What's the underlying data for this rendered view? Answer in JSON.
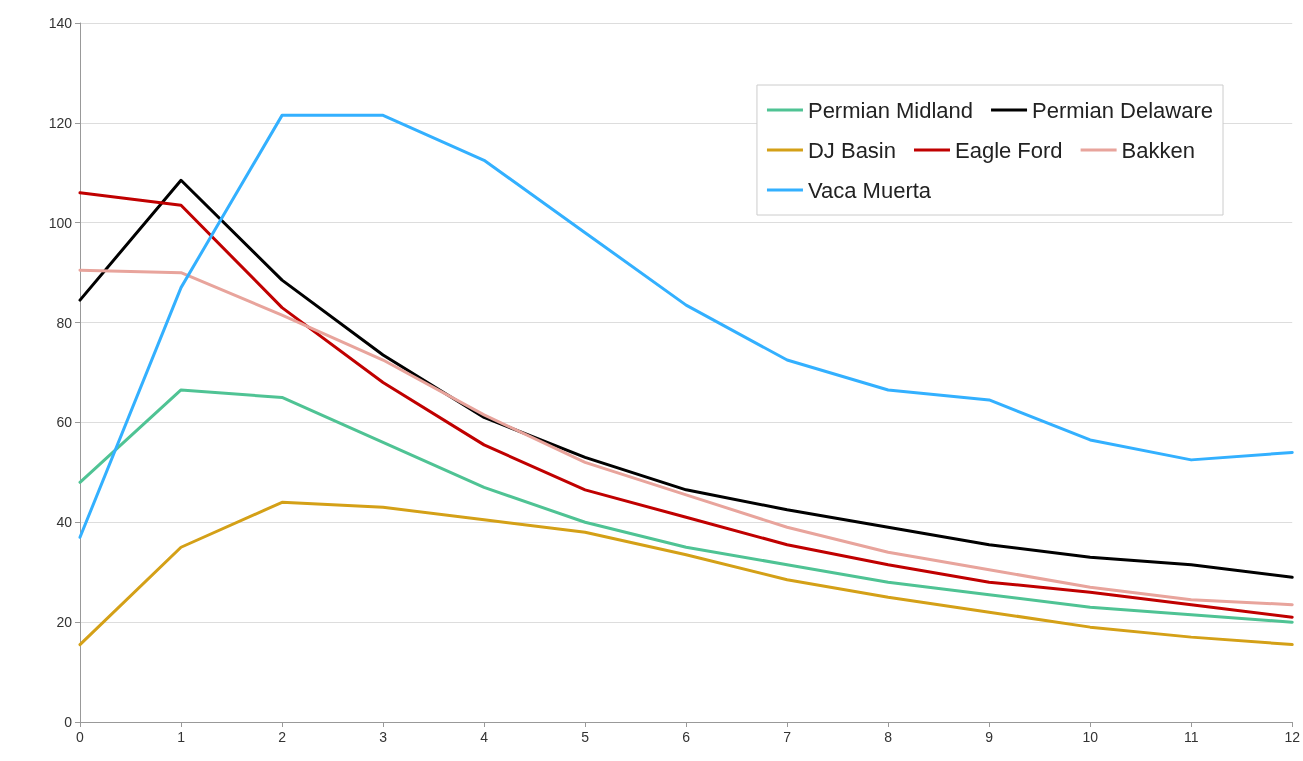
{
  "chart_data": {
    "type": "line",
    "x": [
      0,
      1,
      2,
      3,
      4,
      5,
      6,
      7,
      8,
      9,
      10,
      11,
      12
    ],
    "series": [
      {
        "name": "Permian Midland",
        "color": "#4fc394",
        "values": [
          48,
          66.5,
          65,
          56,
          47,
          40,
          35,
          31.5,
          28,
          25.5,
          23,
          21.5,
          20
        ]
      },
      {
        "name": "Permian Delaware",
        "color": "#000000",
        "values": [
          84.5,
          108.5,
          88.5,
          73.5,
          61,
          53,
          46.5,
          42.5,
          39,
          35.5,
          33,
          31.5,
          29
        ]
      },
      {
        "name": "DJ Basin",
        "color": "#d4a017",
        "values": [
          15.5,
          35,
          44,
          43,
          40.5,
          38,
          33.5,
          28.5,
          25,
          22,
          19,
          17,
          15.5
        ]
      },
      {
        "name": "Eagle Ford",
        "color": "#c00000",
        "values": [
          106,
          103.5,
          83,
          68,
          55.5,
          46.5,
          41,
          35.5,
          31.5,
          28,
          26,
          23.5,
          21
        ]
      },
      {
        "name": "Bakken",
        "color": "#e8a49c",
        "values": [
          90.5,
          90,
          81.5,
          72.5,
          61.5,
          52,
          45.5,
          39,
          34,
          30.5,
          27,
          24.5,
          23.5
        ]
      },
      {
        "name": "Vaca Muerta",
        "color": "#33b0ff",
        "values": [
          37,
          87,
          121.5,
          121.5,
          112.5,
          98,
          83.5,
          72.5,
          66.5,
          64.5,
          56.5,
          52.5,
          54
        ]
      }
    ],
    "xlim": [
      0,
      12
    ],
    "xticks": [
      0,
      1,
      2,
      3,
      4,
      5,
      6,
      7,
      8,
      9,
      10,
      11,
      12
    ],
    "ylim": [
      0,
      140
    ],
    "yticks": [
      0,
      20,
      40,
      60,
      80,
      100,
      120,
      140
    ],
    "grid": "y",
    "legend": "top right",
    "marker": "none",
    "line_style": "solid"
  }
}
